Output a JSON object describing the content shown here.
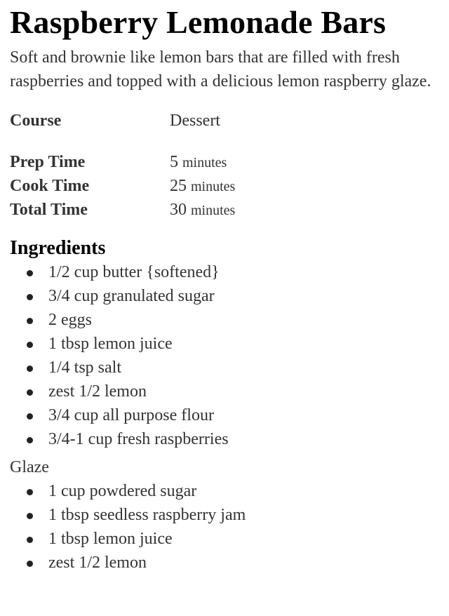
{
  "title": "Raspberry Lemonade Bars",
  "description": "Soft and brownie like lemon bars that are filled with fresh raspberries and topped with a delicious lemon raspberry glaze.",
  "meta": {
    "course": {
      "label": "Course",
      "value": "Dessert"
    },
    "times": [
      {
        "label": "Prep Time",
        "value": "5",
        "unit": "minutes"
      },
      {
        "label": "Cook Time",
        "value": "25",
        "unit": "minutes"
      },
      {
        "label": "Total Time",
        "value": "30",
        "unit": "minutes"
      }
    ]
  },
  "ingredients": {
    "heading": "Ingredients",
    "items": [
      "1/2 cup butter {softened}",
      "3/4 cup granulated sugar",
      "2 eggs",
      "1 tbsp lemon juice",
      "1/4 tsp salt",
      "zest 1/2 lemon",
      "3/4 cup all purpose flour",
      "3/4-1 cup fresh raspberries"
    ],
    "glaze": {
      "heading": "Glaze",
      "items": [
        "1 cup powdered sugar",
        "1 tbsp seedless raspberry jam",
        "1 tbsp lemon juice",
        "zest 1/2 lemon"
      ]
    }
  }
}
